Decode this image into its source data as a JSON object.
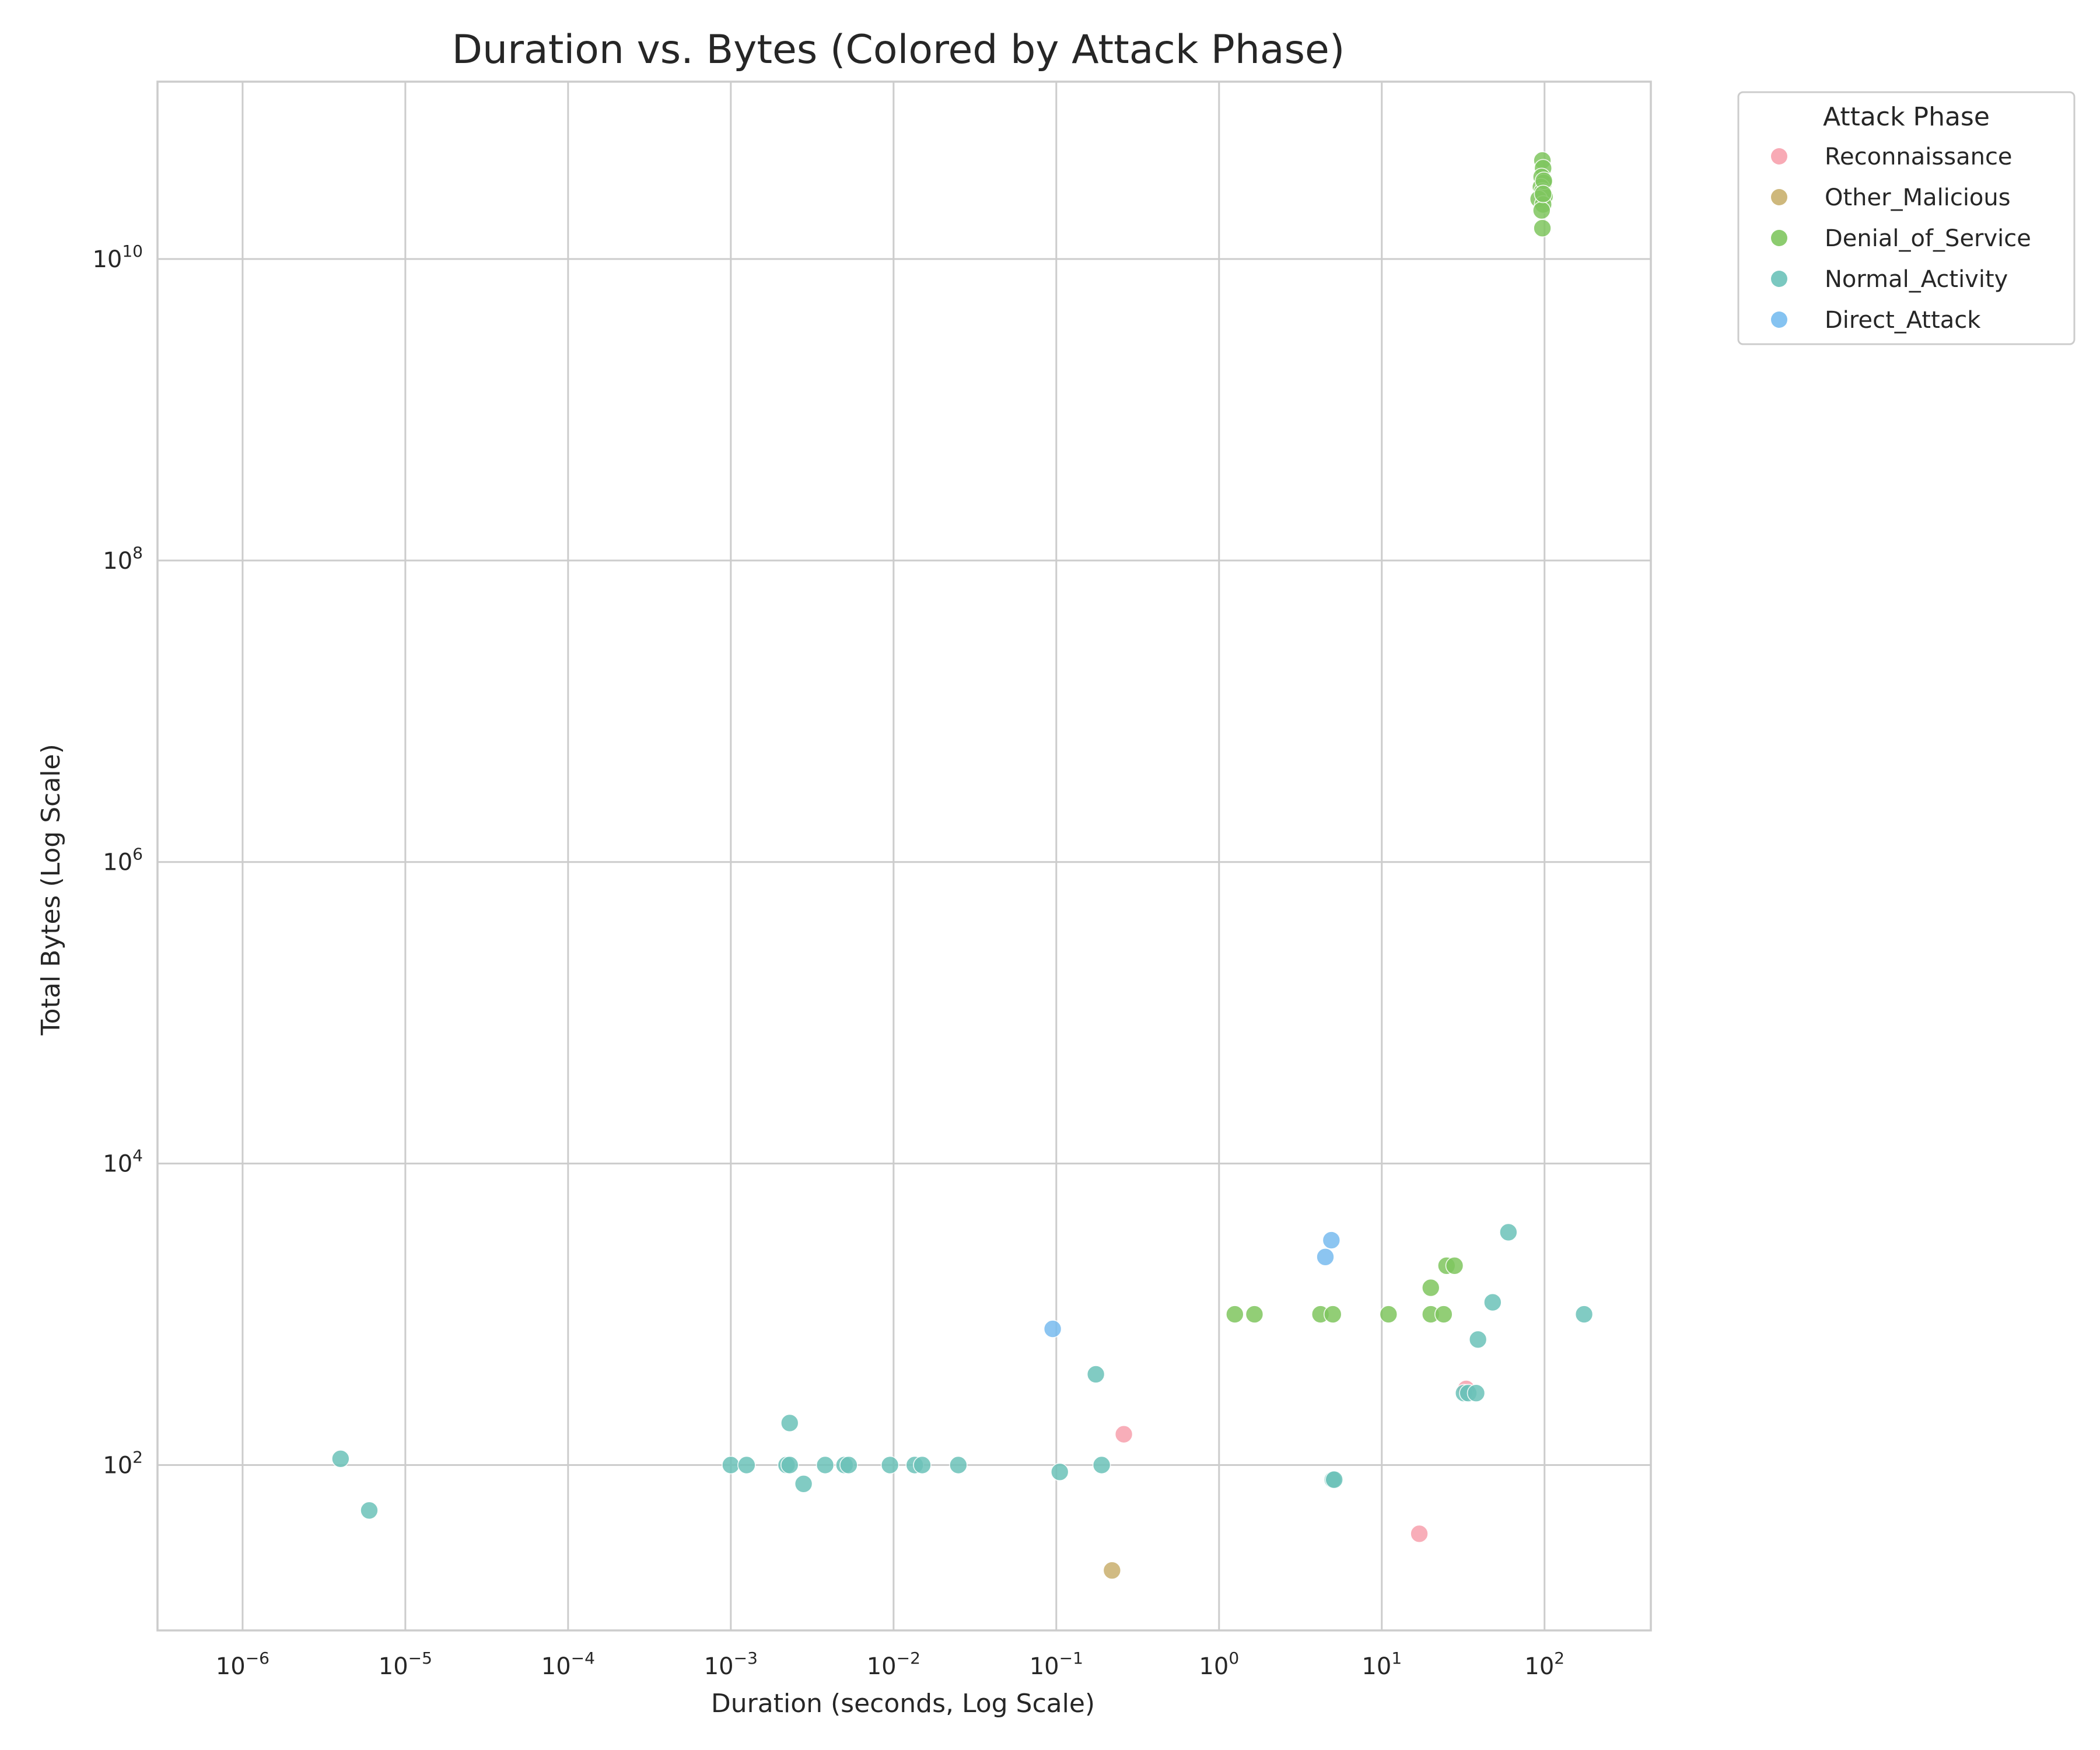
{
  "chart_data": {
    "type": "scatter",
    "title": "Duration vs. Bytes (Colored by Attack Phase)",
    "xlabel": "Duration (seconds, Log Scale)",
    "ylabel": "Total Bytes (Log Scale)",
    "x_scale": "log",
    "y_scale": "log",
    "xlim": [
      3e-07,
      450
    ],
    "ylim": [
      8,
      150000000000.0
    ],
    "x_ticks": [
      {
        "base": "10",
        "exp": "−6",
        "value": 1e-06
      },
      {
        "base": "10",
        "exp": "−5",
        "value": 1e-05
      },
      {
        "base": "10",
        "exp": "−4",
        "value": 0.0001
      },
      {
        "base": "10",
        "exp": "−3",
        "value": 0.001
      },
      {
        "base": "10",
        "exp": "−2",
        "value": 0.01
      },
      {
        "base": "10",
        "exp": "−1",
        "value": 0.1
      },
      {
        "base": "10",
        "exp": "0",
        "value": 1
      },
      {
        "base": "10",
        "exp": "1",
        "value": 10
      },
      {
        "base": "10",
        "exp": "2",
        "value": 100
      }
    ],
    "y_ticks": [
      {
        "base": "10",
        "exp": "2",
        "value": 100.0
      },
      {
        "base": "10",
        "exp": "4",
        "value": 10000.0
      },
      {
        "base": "10",
        "exp": "6",
        "value": 1000000.0
      },
      {
        "base": "10",
        "exp": "8",
        "value": 100000000.0
      },
      {
        "base": "10",
        "exp": "10",
        "value": 10000000000.0
      }
    ],
    "grid": true,
    "legend": {
      "title": "Attack Phase",
      "placement": "outside-upper-right"
    },
    "series": [
      {
        "name": "Reconnaissance",
        "color": "#f7a1ad",
        "points": [
          [
            0.26,
            160
          ],
          [
            33,
            320
          ],
          [
            17,
            35
          ]
        ]
      },
      {
        "name": "Other_Malicious",
        "color": "#c9b06e",
        "points": [
          [
            0.22,
            20
          ]
        ]
      },
      {
        "name": "Denial_of_Service",
        "color": "#7fc65f",
        "points": [
          [
            97,
            45000000000.0
          ],
          [
            98,
            40000000000.0
          ],
          [
            96,
            35000000000.0
          ],
          [
            99,
            32000000000.0
          ],
          [
            95,
            30000000000.0
          ],
          [
            97,
            28000000000.0
          ],
          [
            100,
            26000000000.0
          ],
          [
            92,
            25000000000.0
          ],
          [
            98,
            23000000000.0
          ],
          [
            96,
            21000000000.0
          ],
          [
            97,
            16000000000.0
          ],
          [
            99,
            33000000000.0
          ],
          [
            98,
            27000000000.0
          ],
          [
            1.25,
            1000
          ],
          [
            1.65,
            1000
          ],
          [
            4.2,
            1000
          ],
          [
            5.0,
            1000
          ],
          [
            11,
            1000
          ],
          [
            20,
            1000
          ],
          [
            24,
            1000
          ],
          [
            20,
            1500
          ],
          [
            25,
            2100
          ],
          [
            28,
            2100
          ]
        ]
      },
      {
        "name": "Normal_Activity",
        "color": "#6cc2b9",
        "points": [
          [
            4e-06,
            110
          ],
          [
            6e-06,
            50
          ],
          [
            0.001,
            100
          ],
          [
            0.00125,
            100
          ],
          [
            0.0022,
            100
          ],
          [
            0.0023,
            100
          ],
          [
            0.0023,
            190
          ],
          [
            0.0028,
            75
          ],
          [
            0.0038,
            100
          ],
          [
            0.005,
            100
          ],
          [
            0.0053,
            100
          ],
          [
            0.0095,
            100
          ],
          [
            0.0135,
            100
          ],
          [
            0.015,
            100
          ],
          [
            0.025,
            100
          ],
          [
            0.105,
            90
          ],
          [
            0.19,
            100
          ],
          [
            0.175,
            400
          ],
          [
            5.0,
            80
          ],
          [
            5.1,
            80
          ],
          [
            32,
            300
          ],
          [
            34,
            300
          ],
          [
            38,
            300
          ],
          [
            39,
            680
          ],
          [
            48,
            1200
          ],
          [
            60,
            3500
          ],
          [
            175,
            1000
          ]
        ]
      },
      {
        "name": "Direct_Attack",
        "color": "#78bcef",
        "points": [
          [
            0.095,
            800
          ],
          [
            4.5,
            2400
          ],
          [
            4.9,
            3100
          ]
        ]
      }
    ]
  }
}
